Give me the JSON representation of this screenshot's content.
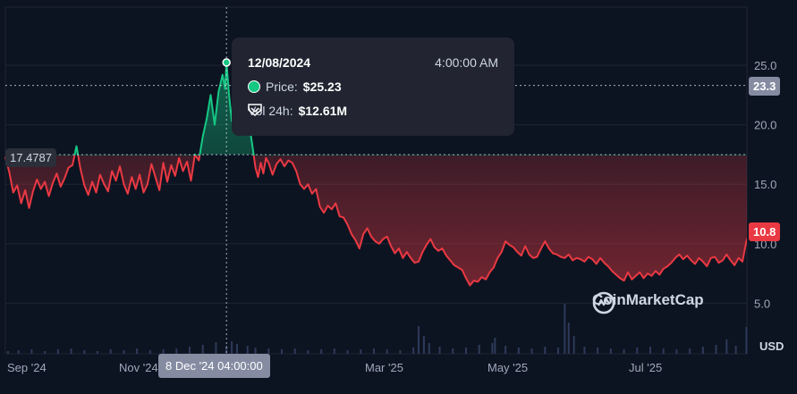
{
  "chart_data": {
    "type": "line",
    "x_ticks": [
      "Sep '24",
      "Nov '24",
      "Mar '25",
      "May '25",
      "Jul '25"
    ],
    "y_ticks": [
      5.0,
      10.0,
      15.0,
      20.0,
      25.0
    ],
    "ylim": [
      0,
      30
    ],
    "unit_label": "USD",
    "reference_price": "17.4787",
    "hover_y_label": "23.3",
    "last_price_label": "10.8",
    "hover_x_label": "8 Dec '24 04:00:00",
    "colors": {
      "up": "#16c784",
      "down": "#ea3943",
      "background": "#0d1421"
    },
    "price_series": [
      [
        0,
        17.3
      ],
      [
        3,
        16.0
      ],
      [
        6,
        14.3
      ],
      [
        9,
        14.9
      ],
      [
        12,
        13.4
      ],
      [
        15,
        14.5
      ],
      [
        18,
        13.0
      ],
      [
        21,
        14.4
      ],
      [
        24,
        15.4
      ],
      [
        27,
        14.6
      ],
      [
        30,
        15.2
      ],
      [
        33,
        14.0
      ],
      [
        36,
        15.1
      ],
      [
        39,
        15.9
      ],
      [
        42,
        14.8
      ],
      [
        45,
        15.5
      ],
      [
        48,
        16.4
      ],
      [
        51,
        16.6
      ],
      [
        54,
        18.2
      ],
      [
        57,
        16.3
      ],
      [
        60,
        14.9
      ],
      [
        63,
        14.1
      ],
      [
        66,
        15.2
      ],
      [
        69,
        14.3
      ],
      [
        72,
        15.8
      ],
      [
        75,
        15.0
      ],
      [
        78,
        14.4
      ],
      [
        81,
        16.1
      ],
      [
        84,
        15.3
      ],
      [
        87,
        16.5
      ],
      [
        90,
        15.0
      ],
      [
        93,
        14.2
      ],
      [
        96,
        15.6
      ],
      [
        99,
        14.6
      ],
      [
        102,
        15.8
      ],
      [
        105,
        14.3
      ],
      [
        108,
        15.0
      ],
      [
        111,
        16.7
      ],
      [
        114,
        15.6
      ],
      [
        117,
        14.5
      ],
      [
        120,
        16.8
      ],
      [
        123,
        15.2
      ],
      [
        126,
        16.6
      ],
      [
        129,
        15.7
      ],
      [
        132,
        17.2
      ],
      [
        135,
        16.1
      ],
      [
        138,
        16.9
      ],
      [
        141,
        15.3
      ],
      [
        144,
        17.5
      ],
      [
        147,
        17.0
      ],
      [
        150,
        19.0
      ],
      [
        153,
        20.5
      ],
      [
        156,
        22.5
      ],
      [
        159,
        20.0
      ],
      [
        162,
        22.8
      ],
      [
        165,
        24.2
      ],
      [
        167,
        23.0
      ],
      [
        168,
        25.23
      ],
      [
        170,
        22.5
      ],
      [
        172,
        20.3
      ],
      [
        174,
        23.8
      ],
      [
        176,
        21.5
      ],
      [
        178,
        21.0
      ],
      [
        180,
        22.0
      ],
      [
        182,
        24.0
      ],
      [
        184,
        21.0
      ],
      [
        186,
        19.5
      ],
      [
        188,
        18.0
      ],
      [
        190,
        16.4
      ],
      [
        192,
        15.6
      ],
      [
        194,
        16.8
      ],
      [
        196,
        15.9
      ],
      [
        198,
        17.2
      ],
      [
        200,
        16.8
      ],
      [
        203,
        15.8
      ],
      [
        206,
        16.7
      ],
      [
        209,
        17.1
      ],
      [
        212,
        16.5
      ],
      [
        215,
        17.0
      ],
      [
        218,
        16.8
      ],
      [
        221,
        16.1
      ],
      [
        224,
        15.0
      ],
      [
        227,
        14.6
      ],
      [
        230,
        15.0
      ],
      [
        233,
        14.2
      ],
      [
        236,
        14.6
      ],
      [
        239,
        13.1
      ],
      [
        242,
        12.6
      ],
      [
        245,
        13.2
      ],
      [
        248,
        12.9
      ],
      [
        251,
        13.4
      ],
      [
        254,
        12.3
      ],
      [
        257,
        12.2
      ],
      [
        260,
        11.6
      ],
      [
        263,
        10.8
      ],
      [
        266,
        10.3
      ],
      [
        269,
        9.6
      ],
      [
        272,
        10.8
      ],
      [
        275,
        11.3
      ],
      [
        278,
        10.6
      ],
      [
        281,
        10.2
      ],
      [
        284,
        10.0
      ],
      [
        287,
        10.4
      ],
      [
        290,
        10.6
      ],
      [
        293,
        9.8
      ],
      [
        296,
        9.2
      ],
      [
        299,
        9.6
      ],
      [
        302,
        8.8
      ],
      [
        305,
        9.3
      ],
      [
        308,
        8.8
      ],
      [
        311,
        8.4
      ],
      [
        314,
        8.5
      ],
      [
        317,
        9.3
      ],
      [
        320,
        9.9
      ],
      [
        323,
        10.4
      ],
      [
        326,
        9.7
      ],
      [
        329,
        9.4
      ],
      [
        332,
        9.6
      ],
      [
        335,
        9.0
      ],
      [
        338,
        8.6
      ],
      [
        341,
        8.2
      ],
      [
        344,
        8.0
      ],
      [
        347,
        7.8
      ],
      [
        350,
        7.1
      ],
      [
        353,
        6.5
      ],
      [
        356,
        6.9
      ],
      [
        359,
        6.8
      ],
      [
        362,
        7.2
      ],
      [
        365,
        7.0
      ],
      [
        368,
        7.6
      ],
      [
        371,
        8.0
      ],
      [
        374,
        8.8
      ],
      [
        377,
        9.3
      ],
      [
        380,
        10.2
      ],
      [
        383,
        9.9
      ],
      [
        386,
        9.7
      ],
      [
        389,
        9.3
      ],
      [
        392,
        9.0
      ],
      [
        395,
        9.8
      ],
      [
        398,
        9.1
      ],
      [
        401,
        8.8
      ],
      [
        404,
        8.9
      ],
      [
        407,
        9.6
      ],
      [
        410,
        10.2
      ],
      [
        413,
        9.6
      ],
      [
        416,
        9.2
      ],
      [
        419,
        9.1
      ],
      [
        422,
        8.9
      ],
      [
        425,
        8.8
      ],
      [
        428,
        9.1
      ],
      [
        431,
        8.6
      ],
      [
        434,
        8.8
      ],
      [
        437,
        8.7
      ],
      [
        440,
        8.5
      ],
      [
        443,
        8.9
      ],
      [
        446,
        8.7
      ],
      [
        449,
        8.3
      ],
      [
        452,
        8.8
      ],
      [
        455,
        8.4
      ],
      [
        458,
        8.1
      ],
      [
        461,
        7.7
      ],
      [
        464,
        7.4
      ],
      [
        467,
        7.1
      ],
      [
        470,
        6.9
      ],
      [
        473,
        7.6
      ],
      [
        476,
        7.0
      ],
      [
        479,
        7.3
      ],
      [
        482,
        7.6
      ],
      [
        485,
        7.1
      ],
      [
        488,
        7.5
      ],
      [
        491,
        7.3
      ],
      [
        494,
        7.7
      ],
      [
        497,
        7.4
      ],
      [
        500,
        7.9
      ],
      [
        503,
        8.1
      ],
      [
        506,
        8.4
      ],
      [
        509,
        8.8
      ],
      [
        512,
        9.1
      ],
      [
        515,
        8.7
      ],
      [
        518,
        9.0
      ],
      [
        521,
        8.6
      ],
      [
        524,
        8.3
      ],
      [
        527,
        8.8
      ],
      [
        530,
        8.5
      ],
      [
        533,
        8.1
      ],
      [
        536,
        8.8
      ],
      [
        539,
        8.9
      ],
      [
        542,
        8.4
      ],
      [
        545,
        8.6
      ],
      [
        548,
        9.1
      ],
      [
        551,
        8.6
      ],
      [
        554,
        8.2
      ],
      [
        557,
        8.8
      ],
      [
        560,
        8.5
      ],
      [
        563,
        10.2
      ],
      [
        565,
        10.8
      ]
    ],
    "volume_series": [
      [
        2,
        0.3
      ],
      [
        10,
        0.4
      ],
      [
        20,
        0.5
      ],
      [
        30,
        0.3
      ],
      [
        40,
        0.5
      ],
      [
        50,
        0.6
      ],
      [
        60,
        0.4
      ],
      [
        70,
        0.3
      ],
      [
        80,
        0.5
      ],
      [
        90,
        0.4
      ],
      [
        100,
        0.6
      ],
      [
        110,
        0.4
      ],
      [
        120,
        0.5
      ],
      [
        130,
        0.6
      ],
      [
        140,
        0.8
      ],
      [
        150,
        1.0
      ],
      [
        160,
        1.3
      ],
      [
        168,
        0.9
      ],
      [
        172,
        1.4
      ],
      [
        176,
        1.1
      ],
      [
        184,
        0.9
      ],
      [
        190,
        0.7
      ],
      [
        200,
        0.6
      ],
      [
        210,
        0.5
      ],
      [
        220,
        0.6
      ],
      [
        230,
        0.4
      ],
      [
        240,
        0.5
      ],
      [
        250,
        0.6
      ],
      [
        260,
        0.4
      ],
      [
        270,
        0.5
      ],
      [
        280,
        0.6
      ],
      [
        290,
        0.5
      ],
      [
        300,
        0.4
      ],
      [
        310,
        0.7
      ],
      [
        314,
        3.1
      ],
      [
        318,
        2.0
      ],
      [
        322,
        1.2
      ],
      [
        330,
        0.8
      ],
      [
        340,
        0.6
      ],
      [
        350,
        0.7
      ],
      [
        360,
        1.0
      ],
      [
        370,
        1.2
      ],
      [
        372,
        1.8
      ],
      [
        380,
        0.9
      ],
      [
        390,
        0.7
      ],
      [
        400,
        0.6
      ],
      [
        410,
        0.8
      ],
      [
        420,
        0.7
      ],
      [
        425,
        5.6
      ],
      [
        428,
        3.5
      ],
      [
        432,
        2.0
      ],
      [
        440,
        0.8
      ],
      [
        450,
        0.7
      ],
      [
        460,
        0.6
      ],
      [
        470,
        0.5
      ],
      [
        480,
        0.7
      ],
      [
        490,
        0.8
      ],
      [
        500,
        0.6
      ],
      [
        510,
        0.5
      ],
      [
        520,
        0.6
      ],
      [
        530,
        0.8
      ],
      [
        540,
        1.0
      ],
      [
        548,
        1.6
      ],
      [
        555,
        0.9
      ],
      [
        563,
        3.0
      ]
    ]
  },
  "tooltip": {
    "date": "12/08/2024",
    "time": "4:00:00 AM",
    "price_label": "Price:",
    "price_value": "$25.23",
    "vol_label": "Vol 24h:",
    "vol_value": "$12.61M"
  },
  "watermark": {
    "text": "CoinMarketCap"
  }
}
